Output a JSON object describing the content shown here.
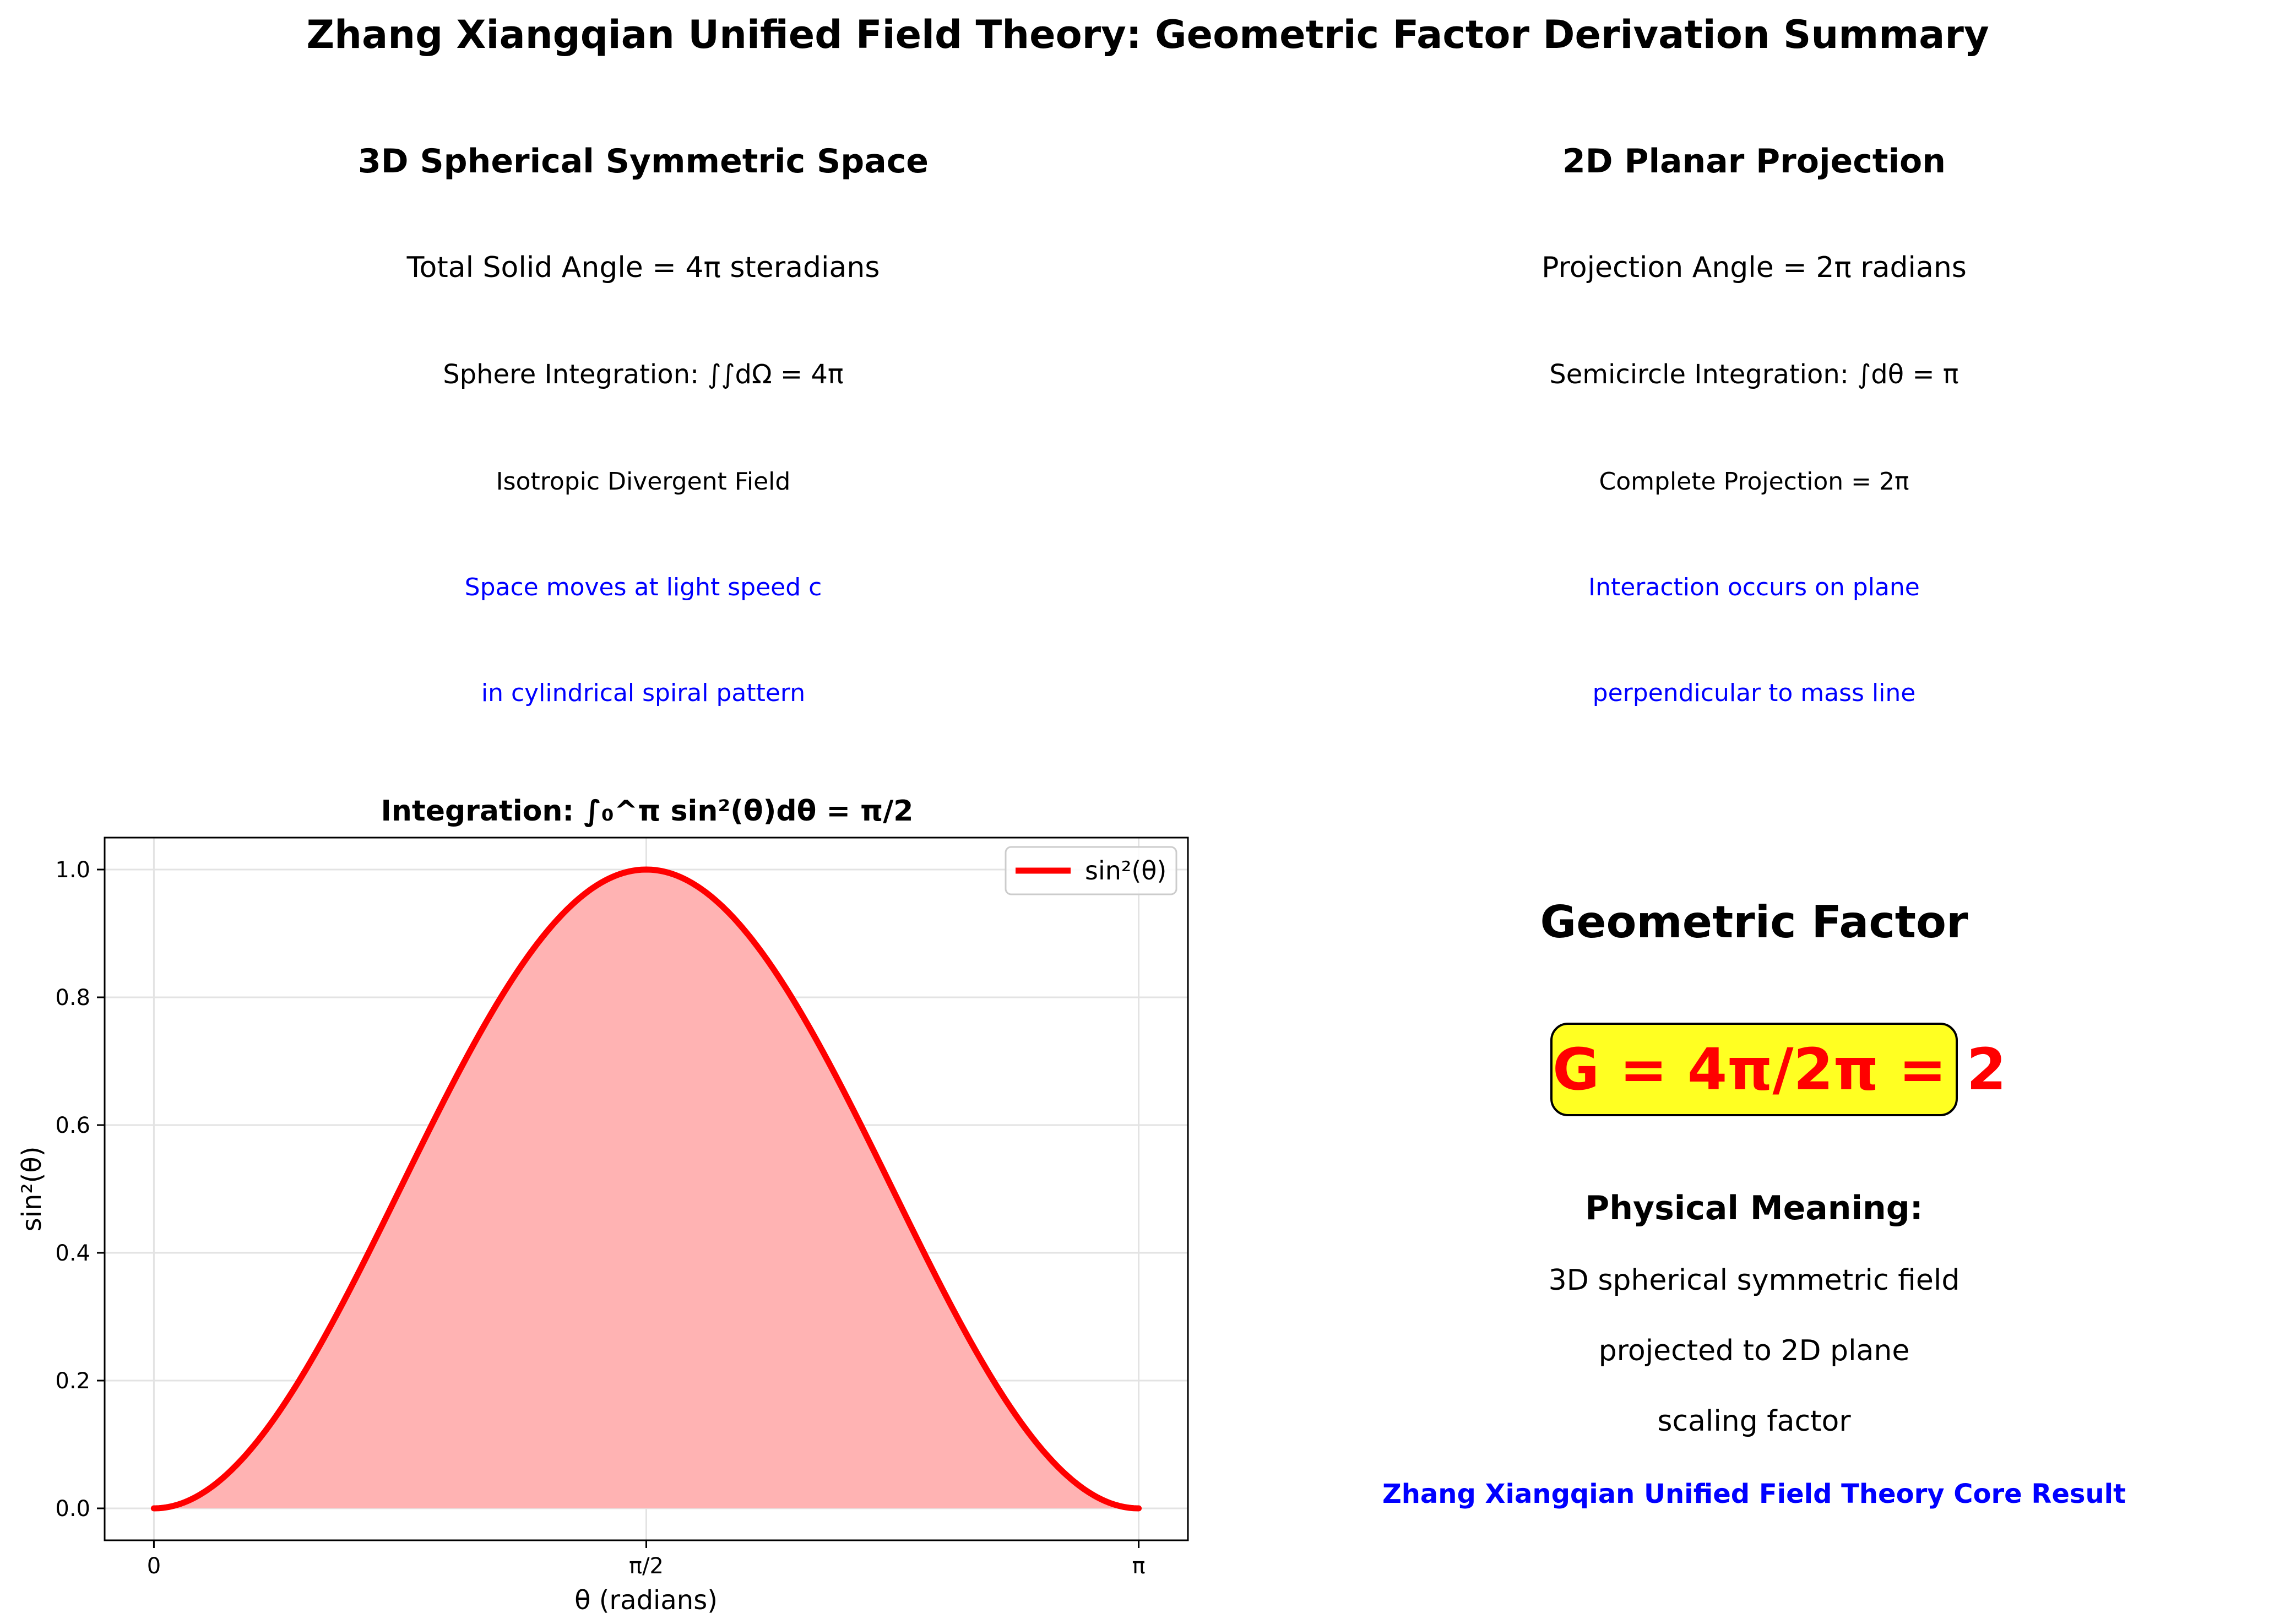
{
  "title": "Zhang Xiangqian Unified Field Theory: Geometric Factor Derivation Summary",
  "left_panel": {
    "title": "3D Spherical Symmetric Space",
    "line1": "Total Solid Angle = 4π steradians",
    "line2": "Sphere Integration: ∫∫dΩ = 4π",
    "line3": "Isotropic Divergent Field",
    "line4": "Space moves at light speed c",
    "line5": "in cylindrical spiral pattern"
  },
  "right_panel": {
    "title": "2D Planar Projection",
    "line1": "Projection Angle = 2π radians",
    "line2": "Semicircle Integration: ∫dθ = π",
    "line3": "Complete Projection = 2π",
    "line4": "Interaction occurs on plane",
    "line5": "perpendicular to mass line"
  },
  "result_panel": {
    "heading": "Geometric Factor",
    "formula": "G = 4π/2π = 2",
    "meaning_heading": "Physical Meaning:",
    "meaning1": "3D spherical symmetric field",
    "meaning2": "projected to 2D plane",
    "meaning3": "scaling factor",
    "footer": "Zhang Xiangqian Unified Field Theory Core Result"
  },
  "colors": {
    "accent_blue": "#0000ff",
    "curve_red": "#ff0000",
    "fill_pink": "#ffb3b3",
    "box_yellow": "#ffff22"
  },
  "chart_data": {
    "type": "area",
    "title": "Integration: ∫₀^π sin²(θ)dθ = π/2",
    "xlabel": "θ (radians)",
    "ylabel": "sin²(θ)",
    "xlim": [
      -0.1571,
      3.2987
    ],
    "ylim": [
      -0.05,
      1.05
    ],
    "xticks": [
      0,
      1.5708,
      3.1416
    ],
    "xtick_labels": [
      "0",
      "π/2",
      "π"
    ],
    "yticks": [
      0.0,
      0.2,
      0.4,
      0.6,
      0.8,
      1.0
    ],
    "ytick_labels": [
      "0.0",
      "0.2",
      "0.4",
      "0.6",
      "0.8",
      "1.0"
    ],
    "grid": true,
    "legend_position": "top-right",
    "series": [
      {
        "name": "sin²(θ)",
        "function": "sin^2",
        "x_range": [
          0,
          3.1416
        ],
        "filled": true
      }
    ]
  }
}
